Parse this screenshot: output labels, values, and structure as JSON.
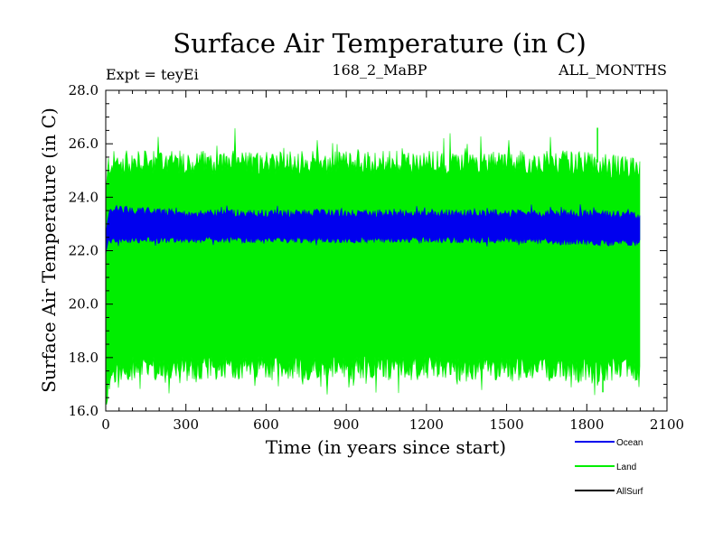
{
  "chart_data": {
    "type": "line",
    "title": "Surface Air Temperature (in C)",
    "subtitle_left": "Expt = teyEi",
    "subtitle_center": "168_2_MaBP",
    "subtitle_right": "ALL_MONTHS",
    "xlabel": "Time (in years since start)",
    "ylabel": "Surface Air Temperature (in C)",
    "xlim": [
      0,
      2100
    ],
    "ylim": [
      16.0,
      28.0
    ],
    "x_ticks": [
      0,
      300,
      600,
      900,
      1200,
      1500,
      1800,
      2100
    ],
    "x_tick_labels": [
      "0",
      "300",
      "600",
      "900",
      "1200",
      "1500",
      "1800",
      "2100"
    ],
    "y_ticks": [
      16.0,
      18.0,
      20.0,
      22.0,
      24.0,
      26.0,
      28.0
    ],
    "y_tick_labels": [
      "16.0",
      "18.0",
      "20.0",
      "22.0",
      "24.0",
      "26.0",
      "28.0"
    ],
    "x_range_years": [
      0,
      2000
    ],
    "series": [
      {
        "name": "Land",
        "color": "#00ee00",
        "band_low": {
          "x": [
            0,
            10,
            30,
            100,
            300,
            600,
            900,
            1200,
            1500,
            1800,
            2000
          ],
          "y": [
            16.1,
            17.0,
            17.4,
            17.6,
            17.6,
            17.6,
            17.6,
            17.6,
            17.6,
            17.5,
            17.6
          ]
        },
        "band_high": {
          "x": [
            0,
            10,
            30,
            100,
            300,
            600,
            900,
            1200,
            1500,
            1800,
            2000
          ],
          "y": [
            24.0,
            25.2,
            25.3,
            25.3,
            25.3,
            25.3,
            25.3,
            25.3,
            25.3,
            25.3,
            25.0
          ]
        },
        "peak_max": 26.6,
        "trough_min": 16.7
      },
      {
        "name": "Ocean",
        "color": "#0000ee",
        "band_low": {
          "x": [
            0,
            10,
            30,
            100,
            300,
            600,
            900,
            1200,
            1500,
            1800,
            2000
          ],
          "y": [
            21.8,
            22.3,
            22.4,
            22.4,
            22.4,
            22.4,
            22.4,
            22.4,
            22.4,
            22.3,
            22.3
          ]
        },
        "band_high": {
          "x": [
            0,
            10,
            30,
            100,
            300,
            600,
            900,
            1200,
            1500,
            1800,
            2000
          ],
          "y": [
            22.5,
            23.3,
            23.6,
            23.5,
            23.4,
            23.4,
            23.4,
            23.4,
            23.4,
            23.4,
            23.3
          ]
        }
      },
      {
        "name": "AllSurf",
        "color": "#000000"
      }
    ],
    "legend": {
      "position": "bottom-right",
      "entries": [
        "Ocean",
        "Land",
        "AllSurf"
      ]
    }
  }
}
